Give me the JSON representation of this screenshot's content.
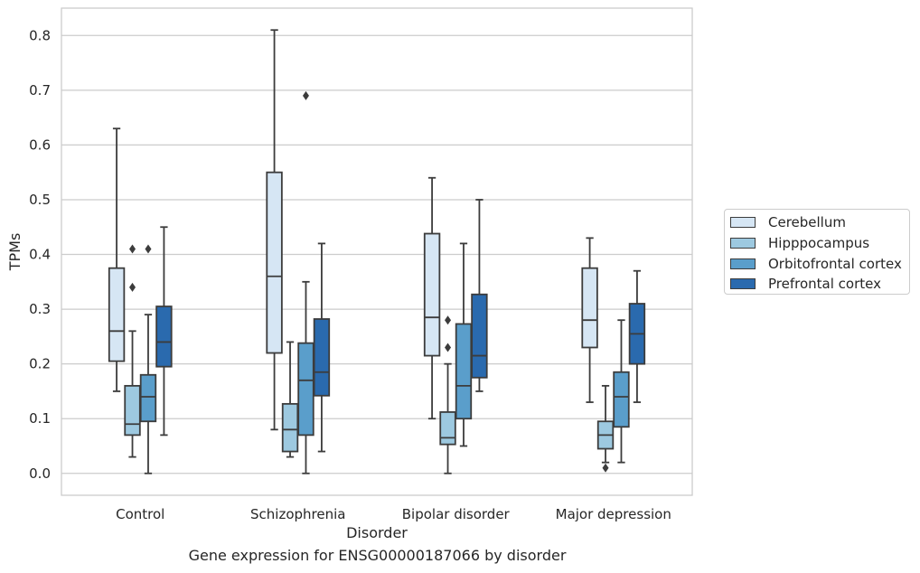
{
  "chart_data": {
    "type": "box",
    "caption": "Gene expression for ENSG00000187066 by disorder",
    "xlabel": "Disorder",
    "ylabel": "TPMs",
    "ylim": [
      -0.04,
      0.85
    ],
    "yticks": [
      0.0,
      0.1,
      0.2,
      0.3,
      0.4,
      0.5,
      0.6,
      0.7,
      0.8
    ],
    "ytick_labels": [
      "0.0",
      "0.1",
      "0.2",
      "0.3",
      "0.4",
      "0.5",
      "0.6",
      "0.7",
      "0.8"
    ],
    "categories": [
      "Control",
      "Schizophrenia",
      "Bipolar disorder",
      "Major depression"
    ],
    "grid": "horizontal",
    "legend_position": "right, outside plot",
    "series": [
      {
        "name": "Cerebellum",
        "color": "#d6e6f4",
        "boxes": [
          {
            "whislo": 0.15,
            "q1": 0.205,
            "med": 0.26,
            "q3": 0.375,
            "whishi": 0.63,
            "fliers": []
          },
          {
            "whislo": 0.08,
            "q1": 0.22,
            "med": 0.36,
            "q3": 0.55,
            "whishi": 0.81,
            "fliers": []
          },
          {
            "whislo": 0.1,
            "q1": 0.215,
            "med": 0.285,
            "q3": 0.438,
            "whishi": 0.54,
            "fliers": []
          },
          {
            "whislo": 0.13,
            "q1": 0.23,
            "med": 0.28,
            "q3": 0.375,
            "whishi": 0.43,
            "fliers": []
          }
        ]
      },
      {
        "name": "Hipppocampus",
        "color": "#9dc9e0",
        "boxes": [
          {
            "whislo": 0.03,
            "q1": 0.07,
            "med": 0.09,
            "q3": 0.16,
            "whishi": 0.26,
            "fliers": [
              0.41,
              0.34
            ]
          },
          {
            "whislo": 0.03,
            "q1": 0.04,
            "med": 0.08,
            "q3": 0.127,
            "whishi": 0.24,
            "fliers": []
          },
          {
            "whislo": 0.0,
            "q1": 0.053,
            "med": 0.065,
            "q3": 0.112,
            "whishi": 0.2,
            "fliers": [
              0.28,
              0.23
            ]
          },
          {
            "whislo": 0.02,
            "q1": 0.045,
            "med": 0.07,
            "q3": 0.095,
            "whishi": 0.16,
            "fliers": [
              0.01
            ]
          }
        ]
      },
      {
        "name": "Orbitofrontal cortex",
        "color": "#5a9ecb",
        "boxes": [
          {
            "whislo": 0.0,
            "q1": 0.095,
            "med": 0.14,
            "q3": 0.18,
            "whishi": 0.29,
            "fliers": [
              0.41
            ]
          },
          {
            "whislo": 0.0,
            "q1": 0.07,
            "med": 0.17,
            "q3": 0.238,
            "whishi": 0.35,
            "fliers": [
              0.69
            ]
          },
          {
            "whislo": 0.05,
            "q1": 0.1,
            "med": 0.16,
            "q3": 0.273,
            "whishi": 0.42,
            "fliers": []
          },
          {
            "whislo": 0.02,
            "q1": 0.085,
            "med": 0.14,
            "q3": 0.185,
            "whishi": 0.28,
            "fliers": []
          }
        ]
      },
      {
        "name": "Prefrontal cortex",
        "color": "#2a6aae",
        "boxes": [
          {
            "whislo": 0.07,
            "q1": 0.195,
            "med": 0.24,
            "q3": 0.305,
            "whishi": 0.45,
            "fliers": []
          },
          {
            "whislo": 0.04,
            "q1": 0.142,
            "med": 0.185,
            "q3": 0.282,
            "whishi": 0.42,
            "fliers": []
          },
          {
            "whislo": 0.15,
            "q1": 0.175,
            "med": 0.215,
            "q3": 0.327,
            "whishi": 0.5,
            "fliers": []
          },
          {
            "whislo": 0.13,
            "q1": 0.2,
            "med": 0.255,
            "q3": 0.31,
            "whishi": 0.37,
            "fliers": []
          }
        ]
      }
    ]
  }
}
